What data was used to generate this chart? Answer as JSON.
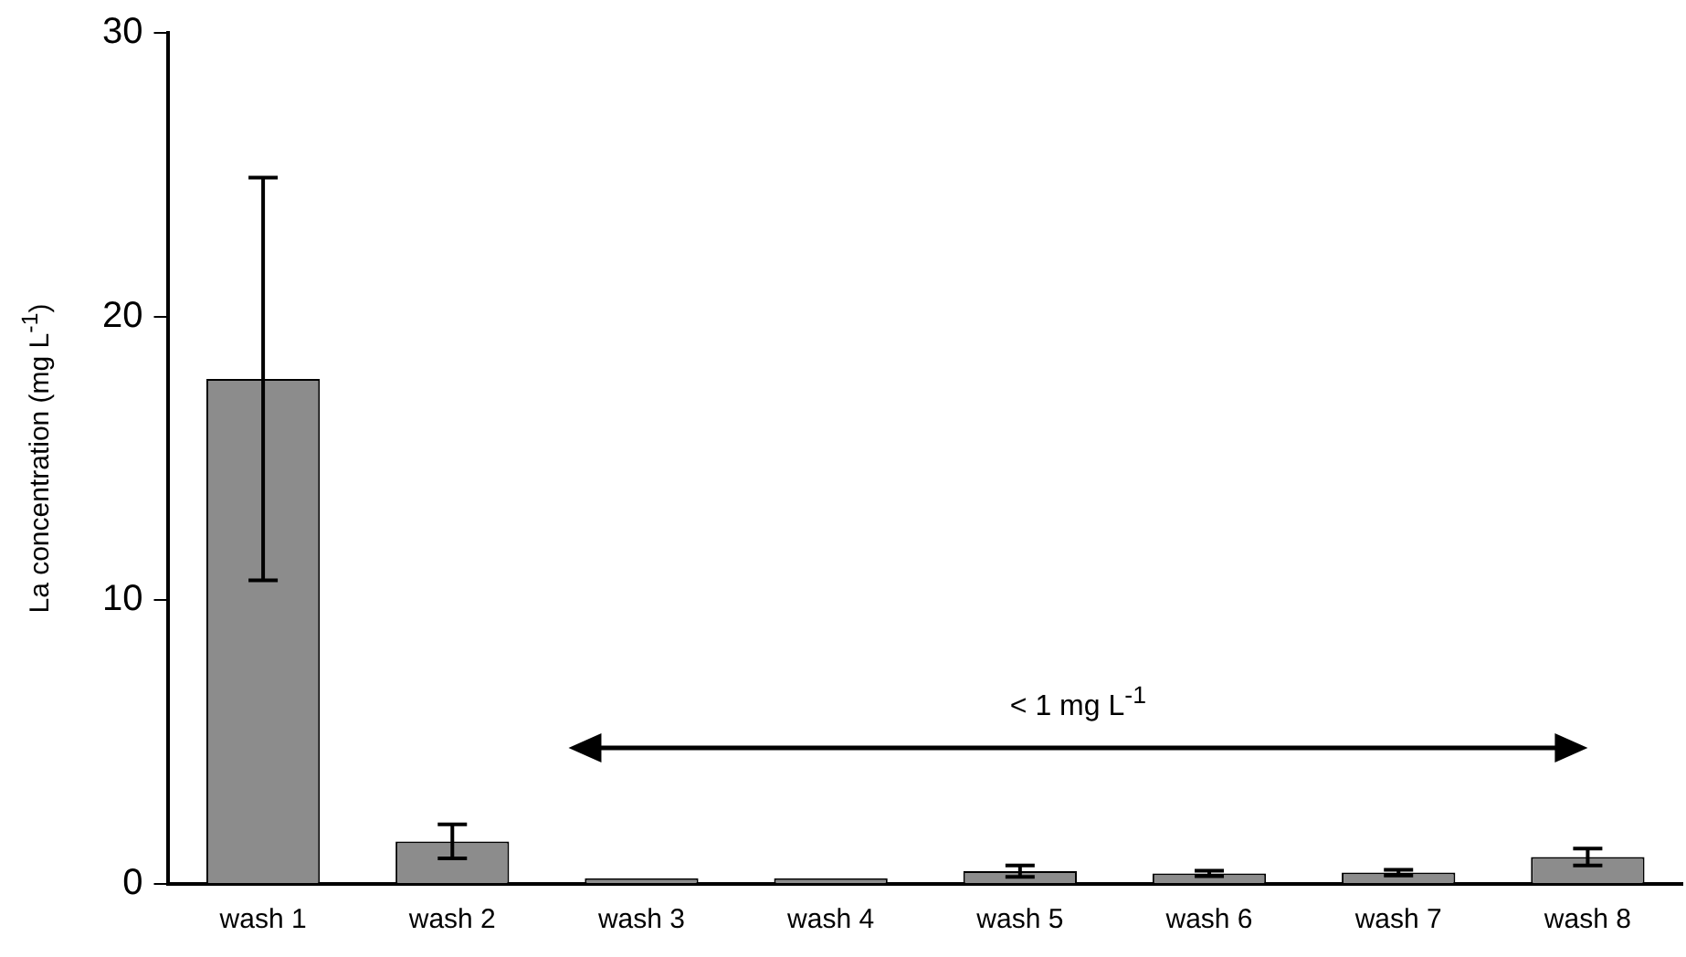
{
  "chart_data": {
    "type": "bar",
    "ylabel": "La concentration (mg L$^{-1}$)",
    "categories": [
      "wash 1",
      "wash 2",
      "wash 3",
      "wash 4",
      "wash 5",
      "wash 6",
      "wash 7",
      "wash 8"
    ],
    "values": [
      17.8,
      1.5,
      0.2,
      0.2,
      0.45,
      0.37,
      0.4,
      0.95
    ],
    "errors": [
      7.1,
      0.6,
      null,
      null,
      0.2,
      0.1,
      0.1,
      0.3
    ],
    "color": "#8c8c8c",
    "ylim": [
      0,
      30
    ],
    "yticks": [
      0,
      10,
      20,
      30
    ],
    "grid": false,
    "legend": false,
    "annotations": [
      "< 1 mg L$^{-1}$"
    ]
  }
}
